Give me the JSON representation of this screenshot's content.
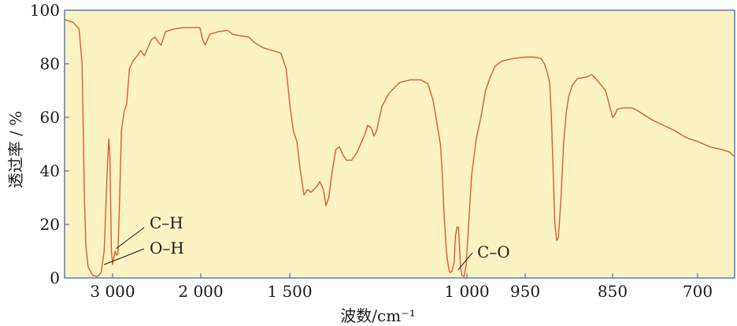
{
  "chart_data": {
    "type": "line",
    "xlabel": "波数/cm⁻¹",
    "ylabel": "透过率 / %",
    "ylim": [
      0,
      100
    ],
    "y_ticks": [
      {
        "value": 0,
        "label": "0"
      },
      {
        "value": 20,
        "label": "20"
      },
      {
        "value": 40,
        "label": "40"
      },
      {
        "value": 60,
        "label": "60"
      },
      {
        "value": 80,
        "label": "80"
      },
      {
        "value": 100,
        "label": "100"
      }
    ],
    "x_ticks": [
      {
        "value": 3000,
        "label": "3 000"
      },
      {
        "value": 2000,
        "label": "2 000"
      },
      {
        "value": 1500,
        "label": "1 500"
      },
      {
        "value": 1000,
        "label": "1 000"
      },
      {
        "value": 950,
        "label": "950"
      },
      {
        "value": 850,
        "label": "850"
      },
      {
        "value": 700,
        "label": "700"
      }
    ],
    "x_direction": "decreasing",
    "grid": false,
    "colors": {
      "plot_bg": "#FBF3C2",
      "line": "#E4572E",
      "frame": "#2E5DA8"
    },
    "annotations": [
      {
        "text": "C–H",
        "x": 2960,
        "y": 11
      },
      {
        "text": "O–H",
        "x": 3110,
        "y": 5
      },
      {
        "text": "C–O",
        "x": 1025,
        "y": 3
      }
    ],
    "series": [
      {
        "points": [
          [
            3630,
            96.5
          ],
          [
            3520,
            95.5
          ],
          [
            3440,
            93
          ],
          [
            3400,
            80
          ],
          [
            3370,
            30
          ],
          [
            3350,
            12
          ],
          [
            3320,
            4
          ],
          [
            3260,
            1
          ],
          [
            3200,
            0.5
          ],
          [
            3150,
            2
          ],
          [
            3110,
            10
          ],
          [
            3070,
            40
          ],
          [
            3050,
            52
          ],
          [
            3035,
            45
          ],
          [
            3015,
            10
          ],
          [
            3000,
            5
          ],
          [
            2985,
            8
          ],
          [
            2970,
            10
          ],
          [
            2955,
            8.5
          ],
          [
            2940,
            9
          ],
          [
            2920,
            30
          ],
          [
            2900,
            55
          ],
          [
            2870,
            62
          ],
          [
            2840,
            65
          ],
          [
            2810,
            78
          ],
          [
            2770,
            81
          ],
          [
            2720,
            83
          ],
          [
            2680,
            85
          ],
          [
            2640,
            83
          ],
          [
            2600,
            86
          ],
          [
            2560,
            89
          ],
          [
            2520,
            90
          ],
          [
            2480,
            88
          ],
          [
            2450,
            87
          ],
          [
            2400,
            92
          ],
          [
            2300,
            93
          ],
          [
            2200,
            93.5
          ],
          [
            2100,
            93.5
          ],
          [
            2010,
            93.5
          ],
          [
            1990,
            89
          ],
          [
            1975,
            87
          ],
          [
            1950,
            91
          ],
          [
            1900,
            92
          ],
          [
            1850,
            92.5
          ],
          [
            1820,
            91
          ],
          [
            1780,
            90.5
          ],
          [
            1730,
            90
          ],
          [
            1700,
            88
          ],
          [
            1650,
            86
          ],
          [
            1600,
            85
          ],
          [
            1550,
            84
          ],
          [
            1520,
            78
          ],
          [
            1500,
            65
          ],
          [
            1490,
            55
          ],
          [
            1480,
            51
          ],
          [
            1470,
            40
          ],
          [
            1460,
            31
          ],
          [
            1450,
            33
          ],
          [
            1440,
            32
          ],
          [
            1425,
            34
          ],
          [
            1415,
            36
          ],
          [
            1405,
            33
          ],
          [
            1398,
            27
          ],
          [
            1390,
            30
          ],
          [
            1380,
            40
          ],
          [
            1370,
            48
          ],
          [
            1360,
            49
          ],
          [
            1350,
            46
          ],
          [
            1340,
            44
          ],
          [
            1325,
            44
          ],
          [
            1310,
            47
          ],
          [
            1290,
            53
          ],
          [
            1280,
            57
          ],
          [
            1270,
            56
          ],
          [
            1262,
            53
          ],
          [
            1255,
            55
          ],
          [
            1240,
            64
          ],
          [
            1220,
            69
          ],
          [
            1190,
            73
          ],
          [
            1160,
            74
          ],
          [
            1130,
            74
          ],
          [
            1110,
            72.5
          ],
          [
            1095,
            66
          ],
          [
            1085,
            58
          ],
          [
            1075,
            50
          ],
          [
            1070,
            40
          ],
          [
            1065,
            25
          ],
          [
            1058,
            10
          ],
          [
            1052,
            4
          ],
          [
            1048,
            2
          ],
          [
            1042,
            2.5
          ],
          [
            1036,
            6
          ],
          [
            1032,
            16
          ],
          [
            1028,
            19
          ],
          [
            1024,
            19
          ],
          [
            1021,
            12
          ],
          [
            1018,
            4
          ],
          [
            1014,
            1
          ],
          [
            1008,
            0.5
          ],
          [
            1002,
            5
          ],
          [
            996,
            38
          ],
          [
            992,
            52
          ],
          [
            988,
            60
          ],
          [
            984,
            70
          ],
          [
            980,
            75
          ],
          [
            976,
            79
          ],
          [
            970,
            81
          ],
          [
            960,
            82
          ],
          [
            950,
            82.5
          ],
          [
            940,
            82.5
          ],
          [
            932,
            82
          ],
          [
            928,
            80
          ],
          [
            925,
            77
          ],
          [
            922,
            73
          ],
          [
            920,
            60
          ],
          [
            918,
            40
          ],
          [
            916,
            20
          ],
          [
            914,
            14
          ],
          [
            912,
            15
          ],
          [
            909,
            30
          ],
          [
            906,
            50
          ],
          [
            903,
            62
          ],
          [
            900,
            68
          ],
          [
            896,
            72
          ],
          [
            890,
            74.5
          ],
          [
            880,
            75
          ],
          [
            874,
            76
          ],
          [
            868,
            74
          ],
          [
            863,
            72
          ],
          [
            858,
            70
          ],
          [
            854,
            65
          ],
          [
            850,
            60
          ],
          [
            846,
            61
          ],
          [
            842,
            63
          ],
          [
            832,
            63.5
          ],
          [
            815,
            63.5
          ],
          [
            806,
            62.5
          ],
          [
            795,
            61
          ],
          [
            780,
            59
          ],
          [
            760,
            57
          ],
          [
            740,
            55
          ],
          [
            725,
            53
          ],
          [
            715,
            52
          ],
          [
            700,
            51
          ],
          [
            680,
            49
          ],
          [
            660,
            48
          ],
          [
            646,
            47
          ],
          [
            642,
            46
          ],
          [
            638,
            45.5
          ]
        ]
      }
    ]
  }
}
